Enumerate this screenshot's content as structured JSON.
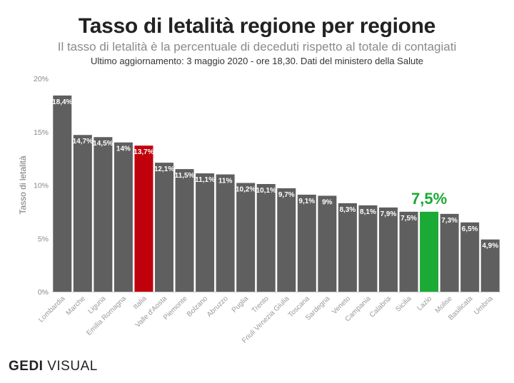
{
  "header": {
    "title": "Tasso di letalità regione per regione",
    "subtitle": "Il tasso di letalità è la percentuale di deceduti rispetto al totale di contagiati",
    "note": "Ultimo aggiornamento: 3 maggio 2020 - ore 18,30. Dati del ministero della Salute"
  },
  "logo": {
    "brand": "GEDI",
    "suffix": "VISUAL"
  },
  "colors": {
    "default": "#5f5f5f",
    "italia": "#c0000b",
    "lazio": "#1aaa35",
    "highlight_label": "#1aaa35"
  },
  "chart_data": {
    "type": "bar",
    "ylabel": "Tasso di letalità",
    "ylim": [
      0,
      20
    ],
    "yticks": [
      0,
      5,
      10,
      15,
      20
    ],
    "ytick_labels": [
      "0%",
      "5%",
      "10%",
      "15%",
      "20%"
    ],
    "grid": false,
    "categories": [
      "Lombardia",
      "Marche",
      "Liguria",
      "Emilia Romagna",
      "Italia",
      "Valle d'Aosta",
      "Piemonte",
      "Bolzano",
      "Abruzzo",
      "Puglia",
      "Trento",
      "Friuli Venezia Giulia",
      "Toscana",
      "Sardegna",
      "Veneto",
      "Campania",
      "Calabria",
      "Sicilia",
      "Lazio",
      "Molise",
      "Basilicata",
      "Umbria"
    ],
    "values": [
      18.4,
      14.7,
      14.5,
      14,
      13.7,
      12.1,
      11.5,
      11.1,
      11,
      10.2,
      10.1,
      9.7,
      9.1,
      9,
      8.3,
      8.1,
      7.9,
      7.5,
      7.5,
      7.3,
      6.5,
      4.9
    ],
    "data_labels": [
      "18,4%",
      "14,7%",
      "14,5%",
      "14%",
      "13,7%",
      "12,1%",
      "11,5%",
      "11,1%",
      "11%",
      "10,2%",
      "10,1%",
      "9,7%",
      "9,1%",
      "9%",
      "8,3%",
      "8,1%",
      "7,9%",
      "7,5%",
      "7,5%",
      "7,3%",
      "6,5%",
      "4,9%"
    ],
    "highlight": {
      "Italia": "italia",
      "Lazio": "lazio"
    }
  }
}
